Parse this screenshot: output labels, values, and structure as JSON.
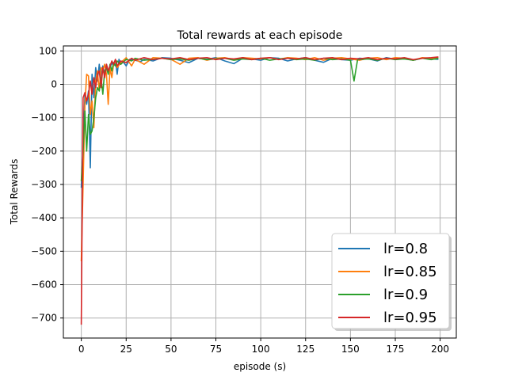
{
  "chart_data": {
    "type": "line",
    "title": "Total rewards at each episode",
    "xlabel": "episode (s)",
    "ylabel": "Total Rewards",
    "xlim": [
      -10,
      209
    ],
    "ylim": [
      -760,
      115
    ],
    "x_ticks": [
      0,
      25,
      50,
      75,
      100,
      125,
      150,
      175,
      200
    ],
    "y_ticks": [
      100,
      0,
      -100,
      -200,
      -300,
      -400,
      -500,
      -600,
      -700
    ],
    "grid": true,
    "legend_position": "bottom-right",
    "series": [
      {
        "name": "lr=0.8",
        "color": "#1f77b4",
        "points": [
          [
            0,
            -310
          ],
          [
            1,
            -180
          ],
          [
            2,
            -30
          ],
          [
            3,
            -60
          ],
          [
            4,
            -20
          ],
          [
            5,
            -250
          ],
          [
            6,
            30
          ],
          [
            7,
            -40
          ],
          [
            8,
            50
          ],
          [
            9,
            10
          ],
          [
            10,
            60
          ],
          [
            11,
            20
          ],
          [
            12,
            55
          ],
          [
            13,
            30
          ],
          [
            14,
            60
          ],
          [
            15,
            40
          ],
          [
            16,
            50
          ],
          [
            17,
            65
          ],
          [
            18,
            55
          ],
          [
            19,
            70
          ],
          [
            20,
            30
          ],
          [
            21,
            75
          ],
          [
            22,
            60
          ],
          [
            23,
            70
          ],
          [
            25,
            55
          ],
          [
            27,
            75
          ],
          [
            30,
            72
          ],
          [
            33,
            68
          ],
          [
            35,
            75
          ],
          [
            40,
            70
          ],
          [
            45,
            80
          ],
          [
            50,
            78
          ],
          [
            55,
            72
          ],
          [
            60,
            65
          ],
          [
            65,
            78
          ],
          [
            70,
            75
          ],
          [
            75,
            80
          ],
          [
            80,
            70
          ],
          [
            85,
            62
          ],
          [
            90,
            78
          ],
          [
            95,
            76
          ],
          [
            100,
            72
          ],
          [
            105,
            80
          ],
          [
            110,
            78
          ],
          [
            115,
            70
          ],
          [
            120,
            76
          ],
          [
            125,
            80
          ],
          [
            130,
            72
          ],
          [
            135,
            66
          ],
          [
            140,
            78
          ],
          [
            145,
            74
          ],
          [
            150,
            72
          ],
          [
            155,
            78
          ],
          [
            160,
            76
          ],
          [
            165,
            70
          ],
          [
            170,
            80
          ],
          [
            175,
            75
          ],
          [
            180,
            78
          ],
          [
            185,
            72
          ],
          [
            190,
            78
          ],
          [
            195,
            76
          ],
          [
            199,
            75
          ]
        ]
      },
      {
        "name": "lr=0.85",
        "color": "#ff7f0e",
        "points": [
          [
            0,
            -530
          ],
          [
            1,
            -300
          ],
          [
            2,
            -60
          ],
          [
            3,
            30
          ],
          [
            4,
            25
          ],
          [
            5,
            -90
          ],
          [
            6,
            -50
          ],
          [
            7,
            -130
          ],
          [
            8,
            10
          ],
          [
            9,
            40
          ],
          [
            10,
            -20
          ],
          [
            11,
            50
          ],
          [
            12,
            40
          ],
          [
            13,
            60
          ],
          [
            14,
            30
          ],
          [
            15,
            -60
          ],
          [
            16,
            50
          ],
          [
            17,
            20
          ],
          [
            18,
            60
          ],
          [
            19,
            70
          ],
          [
            20,
            50
          ],
          [
            22,
            65
          ],
          [
            25,
            80
          ],
          [
            28,
            55
          ],
          [
            30,
            75
          ],
          [
            35,
            60
          ],
          [
            40,
            80
          ],
          [
            45,
            78
          ],
          [
            50,
            75
          ],
          [
            55,
            60
          ],
          [
            60,
            78
          ],
          [
            65,
            80
          ],
          [
            70,
            72
          ],
          [
            75,
            78
          ],
          [
            80,
            80
          ],
          [
            85,
            74
          ],
          [
            90,
            80
          ],
          [
            95,
            78
          ],
          [
            100,
            76
          ],
          [
            105,
            80
          ],
          [
            110,
            75
          ],
          [
            115,
            80
          ],
          [
            120,
            78
          ],
          [
            125,
            74
          ],
          [
            130,
            80
          ],
          [
            135,
            72
          ],
          [
            140,
            78
          ],
          [
            145,
            80
          ],
          [
            150,
            76
          ],
          [
            155,
            72
          ],
          [
            160,
            78
          ],
          [
            165,
            80
          ],
          [
            170,
            74
          ],
          [
            175,
            80
          ],
          [
            180,
            78
          ],
          [
            185,
            72
          ],
          [
            190,
            80
          ],
          [
            195,
            78
          ],
          [
            199,
            80
          ]
        ]
      },
      {
        "name": "lr=0.9",
        "color": "#2ca02c",
        "points": [
          [
            0,
            -290
          ],
          [
            1,
            -200
          ],
          [
            2,
            -80
          ],
          [
            3,
            -200
          ],
          [
            4,
            -90
          ],
          [
            5,
            -150
          ],
          [
            6,
            -140
          ],
          [
            7,
            -100
          ],
          [
            8,
            -40
          ],
          [
            9,
            -10
          ],
          [
            10,
            -20
          ],
          [
            11,
            20
          ],
          [
            12,
            -30
          ],
          [
            13,
            40
          ],
          [
            14,
            50
          ],
          [
            15,
            30
          ],
          [
            16,
            60
          ],
          [
            17,
            40
          ],
          [
            18,
            65
          ],
          [
            19,
            55
          ],
          [
            20,
            70
          ],
          [
            22,
            60
          ],
          [
            25,
            75
          ],
          [
            28,
            70
          ],
          [
            30,
            78
          ],
          [
            35,
            72
          ],
          [
            40,
            75
          ],
          [
            45,
            78
          ],
          [
            50,
            74
          ],
          [
            55,
            76
          ],
          [
            60,
            72
          ],
          [
            65,
            78
          ],
          [
            70,
            74
          ],
          [
            75,
            76
          ],
          [
            80,
            78
          ],
          [
            85,
            72
          ],
          [
            90,
            76
          ],
          [
            95,
            74
          ],
          [
            100,
            78
          ],
          [
            105,
            72
          ],
          [
            110,
            76
          ],
          [
            115,
            78
          ],
          [
            120,
            74
          ],
          [
            125,
            76
          ],
          [
            130,
            72
          ],
          [
            135,
            78
          ],
          [
            140,
            74
          ],
          [
            145,
            76
          ],
          [
            150,
            72
          ],
          [
            152,
            10
          ],
          [
            154,
            74
          ],
          [
            160,
            76
          ],
          [
            165,
            72
          ],
          [
            170,
            78
          ],
          [
            175,
            74
          ],
          [
            180,
            76
          ],
          [
            185,
            72
          ],
          [
            190,
            78
          ],
          [
            195,
            74
          ],
          [
            199,
            78
          ]
        ]
      },
      {
        "name": "lr=0.95",
        "color": "#d62728",
        "points": [
          [
            0,
            -720
          ],
          [
            1,
            -40
          ],
          [
            2,
            -25
          ],
          [
            3,
            -50
          ],
          [
            4,
            -30
          ],
          [
            5,
            10
          ],
          [
            6,
            -30
          ],
          [
            7,
            20
          ],
          [
            8,
            -10
          ],
          [
            9,
            30
          ],
          [
            10,
            40
          ],
          [
            11,
            -10
          ],
          [
            12,
            50
          ],
          [
            13,
            20
          ],
          [
            14,
            60
          ],
          [
            15,
            40
          ],
          [
            16,
            55
          ],
          [
            17,
            70
          ],
          [
            18,
            60
          ],
          [
            19,
            75
          ],
          [
            20,
            55
          ],
          [
            22,
            70
          ],
          [
            25,
            65
          ],
          [
            28,
            78
          ],
          [
            30,
            72
          ],
          [
            35,
            80
          ],
          [
            40,
            74
          ],
          [
            45,
            78
          ],
          [
            50,
            76
          ],
          [
            55,
            80
          ],
          [
            60,
            74
          ],
          [
            65,
            78
          ],
          [
            70,
            80
          ],
          [
            75,
            74
          ],
          [
            80,
            78
          ],
          [
            85,
            76
          ],
          [
            90,
            80
          ],
          [
            95,
            74
          ],
          [
            100,
            78
          ],
          [
            105,
            80
          ],
          [
            110,
            74
          ],
          [
            115,
            78
          ],
          [
            120,
            76
          ],
          [
            125,
            80
          ],
          [
            130,
            74
          ],
          [
            135,
            78
          ],
          [
            140,
            80
          ],
          [
            145,
            74
          ],
          [
            150,
            78
          ],
          [
            155,
            76
          ],
          [
            160,
            80
          ],
          [
            165,
            74
          ],
          [
            170,
            78
          ],
          [
            175,
            76
          ],
          [
            180,
            80
          ],
          [
            185,
            74
          ],
          [
            190,
            78
          ],
          [
            195,
            80
          ],
          [
            199,
            82
          ]
        ]
      }
    ]
  }
}
